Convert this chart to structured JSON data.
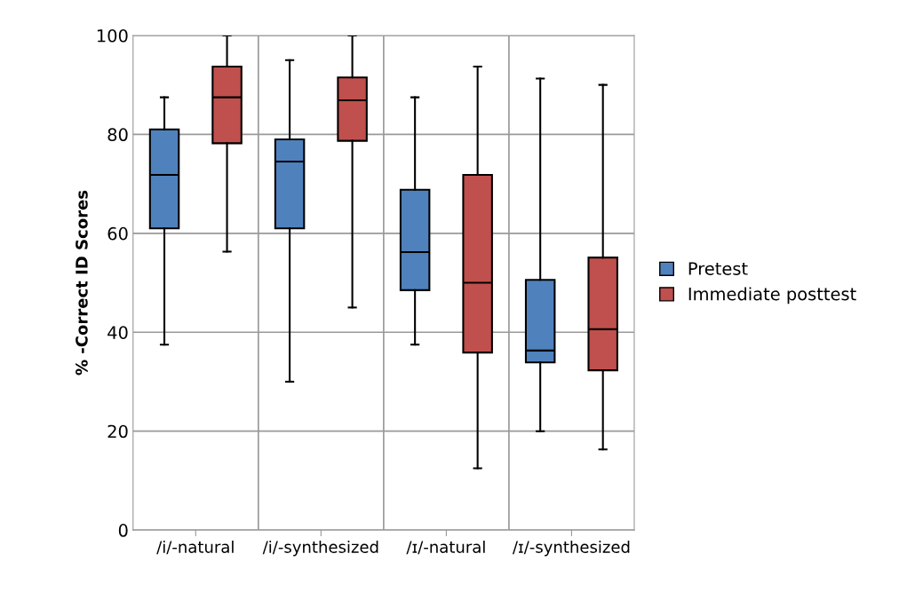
{
  "chart_data": {
    "type": "box",
    "ylabel": "% -Correct ID Scores",
    "categories": [
      "/i/-natural",
      "/i/-synthesized",
      "/ɪ/-natural",
      "/ɪ/-synthesized"
    ],
    "ylim": [
      0,
      100
    ],
    "yticks": [
      0,
      20,
      40,
      60,
      80,
      100
    ],
    "grid": true,
    "legend": "right",
    "series": [
      {
        "name": "Pretest",
        "color": "#4f81bd",
        "boxes": [
          {
            "low": 37.5,
            "q1": 61,
            "median": 71.8,
            "q3": 81,
            "high": 87.5
          },
          {
            "low": 30,
            "q1": 61,
            "median": 74.5,
            "q3": 79,
            "high": 95
          },
          {
            "low": 37.5,
            "q1": 48.5,
            "median": 56.2,
            "q3": 68.8,
            "high": 87.5
          },
          {
            "low": 20,
            "q1": 33.9,
            "median": 36.3,
            "q3": 50.6,
            "high": 91.3
          }
        ]
      },
      {
        "name": "Immediate posttest",
        "color": "#c0504d",
        "boxes": [
          {
            "low": 56.3,
            "q1": 78.2,
            "median": 87.5,
            "q3": 93.7,
            "high": 100
          },
          {
            "low": 45,
            "q1": 78.7,
            "median": 86.9,
            "q3": 91.5,
            "high": 100
          },
          {
            "low": 12.5,
            "q1": 35.9,
            "median": 50,
            "q3": 71.8,
            "high": 93.7
          },
          {
            "low": 16.3,
            "q1": 32.3,
            "median": 40.6,
            "q3": 55.1,
            "high": 90
          }
        ]
      }
    ]
  }
}
